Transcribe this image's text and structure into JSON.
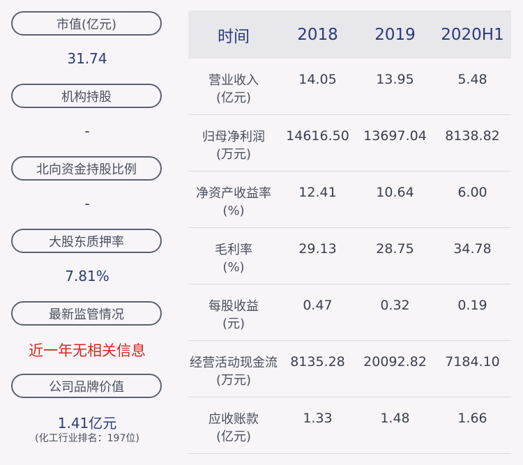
{
  "left": {
    "items": [
      {
        "label": "市值(亿元)",
        "value": "31.74"
      },
      {
        "label": "机构持股",
        "value": "-"
      },
      {
        "label": "北向资金持股比例",
        "value": "-"
      },
      {
        "label": "大股东质押率",
        "value": "7.81%"
      },
      {
        "label": "最新监管情况",
        "value": "近一年无相关信息"
      },
      {
        "label": "公司品牌价值",
        "value": "1.41亿元",
        "note": "(化工行业排名：197位)"
      }
    ],
    "colors": {
      "value": "#2b3a78",
      "alert": "#d9261c"
    }
  },
  "table": {
    "headers": [
      "时间",
      "2018",
      "2019",
      "2020H1"
    ],
    "rows": [
      {
        "label": "营业收入",
        "unit": "(亿元)",
        "values": [
          "14.05",
          "13.95",
          "5.48"
        ]
      },
      {
        "label": "归母净利润",
        "unit": "(万元)",
        "values": [
          "14616.50",
          "13697.04",
          "8138.82"
        ]
      },
      {
        "label": "净资产收益率",
        "unit": "(%)",
        "values": [
          "12.41",
          "10.64",
          "6.00"
        ]
      },
      {
        "label": "毛利率",
        "unit": "(%)",
        "values": [
          "29.13",
          "28.75",
          "34.78"
        ]
      },
      {
        "label": "每股收益",
        "unit": "(元)",
        "values": [
          "0.47",
          "0.32",
          "0.19"
        ]
      },
      {
        "label": "经营活动现金流",
        "unit": "(万元)",
        "values": [
          "8135.28",
          "20092.82",
          "7184.10"
        ]
      },
      {
        "label": "应收账款",
        "unit": "(亿元)",
        "values": [
          "1.33",
          "1.48",
          "1.66"
        ]
      }
    ]
  }
}
